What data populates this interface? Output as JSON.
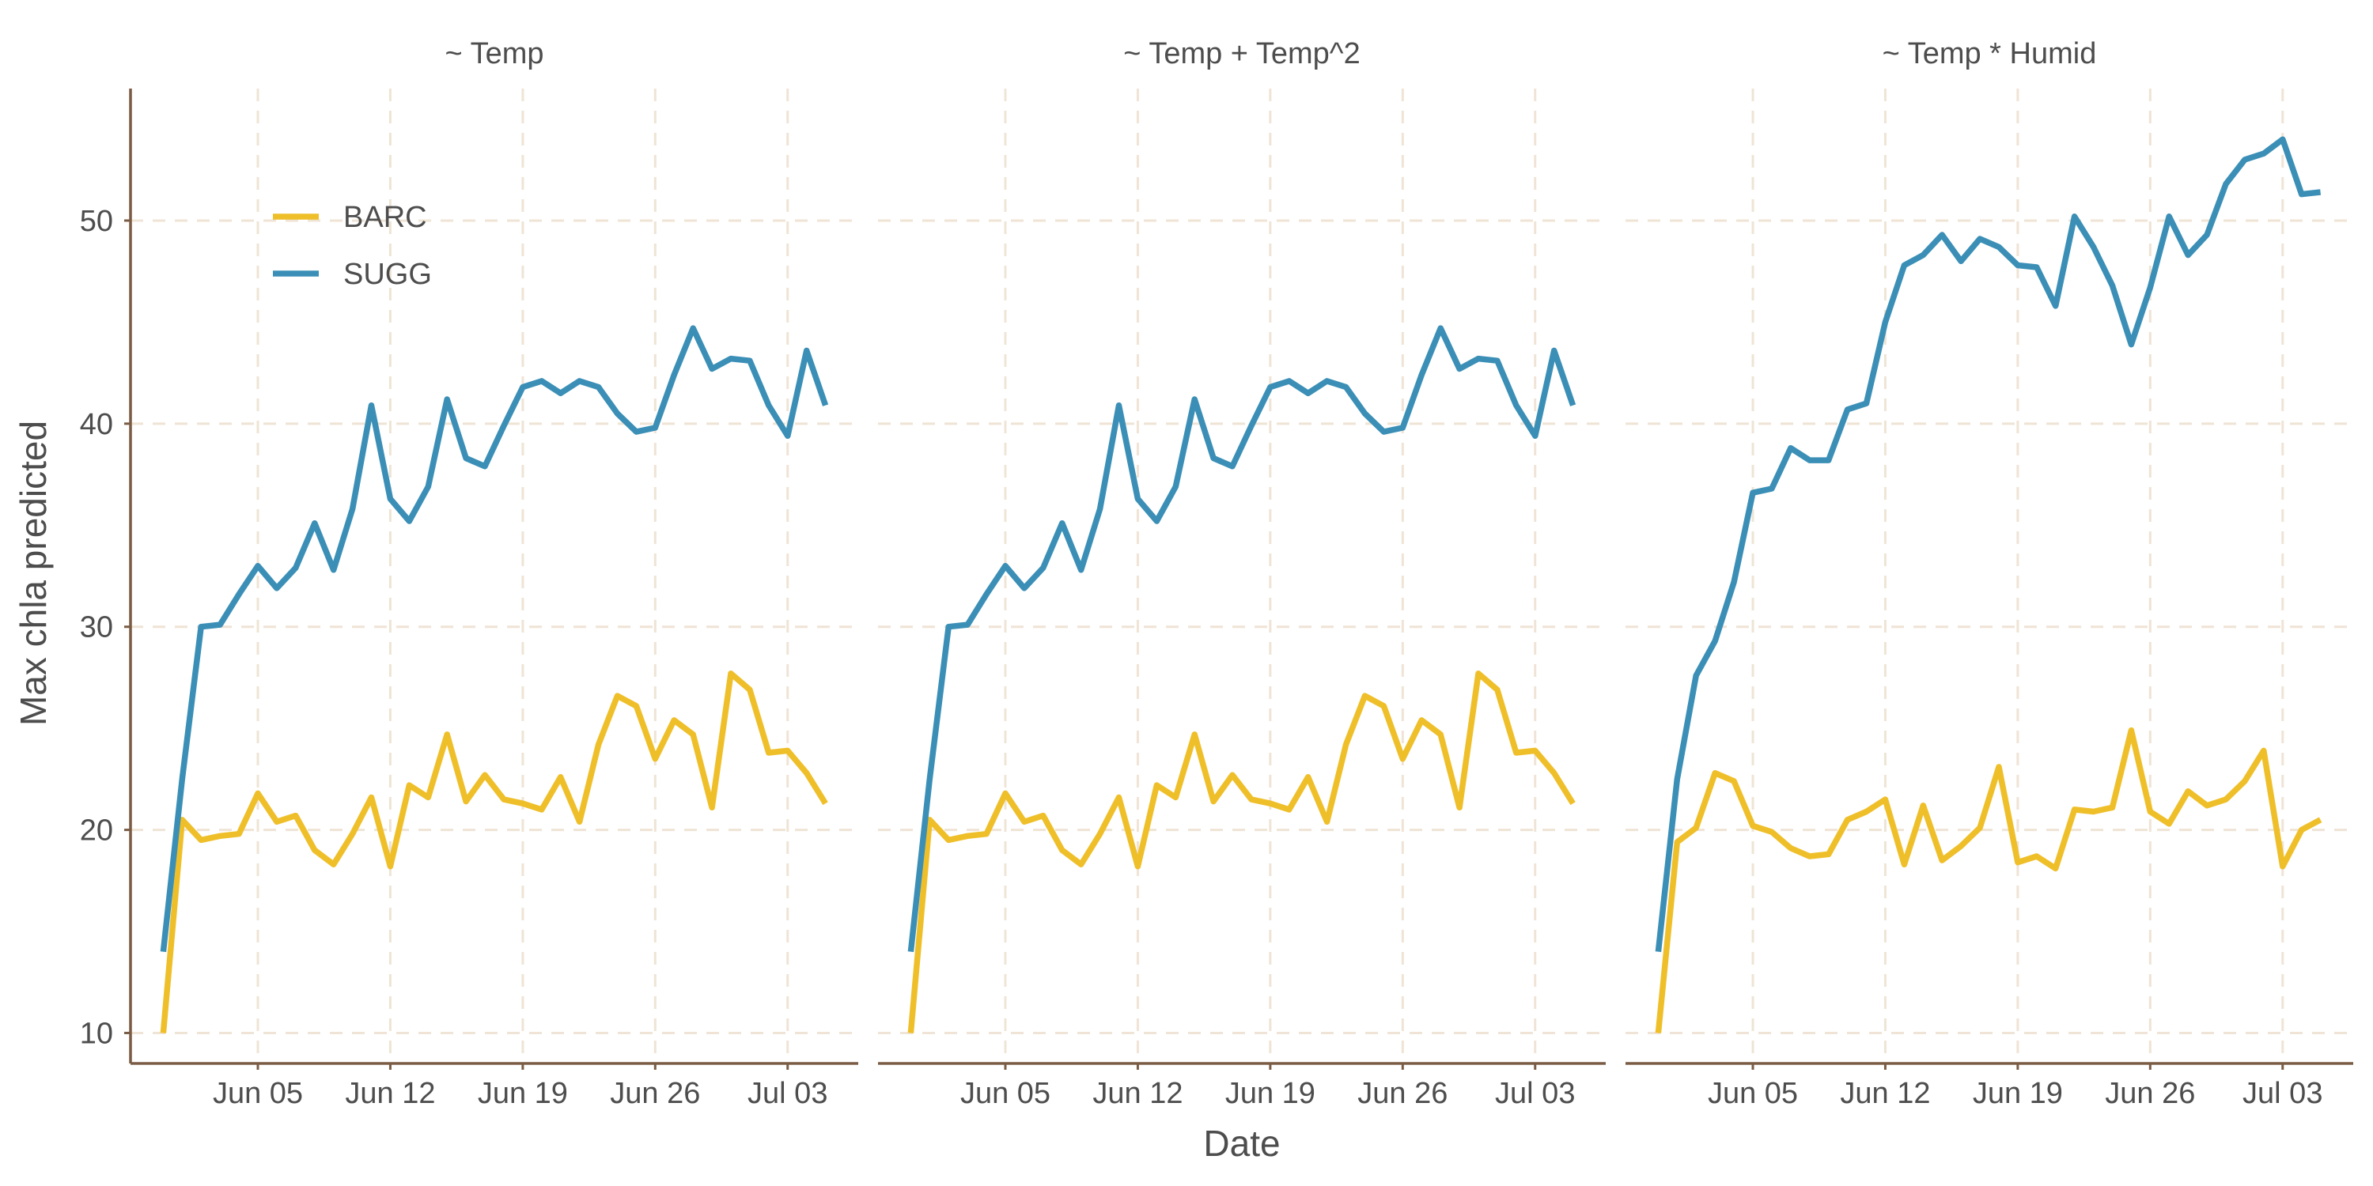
{
  "chart_data": {
    "type": "line",
    "xlabel": "Date",
    "ylabel": "Max chla predicted",
    "ylim": [
      8.5,
      56.5
    ],
    "y_ticks": [
      10,
      20,
      30,
      40,
      50
    ],
    "x_ticks": [
      "Jun 05",
      "Jun 12",
      "Jun 19",
      "Jun 26",
      "Jul 03"
    ],
    "x_dates": [
      "2020-05-31",
      "2020-06-01",
      "2020-06-02",
      "2020-06-03",
      "2020-06-04",
      "2020-06-05",
      "2020-06-06",
      "2020-06-07",
      "2020-06-08",
      "2020-06-09",
      "2020-06-10",
      "2020-06-11",
      "2020-06-12",
      "2020-06-13",
      "2020-06-14",
      "2020-06-15",
      "2020-06-16",
      "2020-06-17",
      "2020-06-18",
      "2020-06-19",
      "2020-06-20",
      "2020-06-21",
      "2020-06-22",
      "2020-06-23",
      "2020-06-24",
      "2020-06-25",
      "2020-06-26",
      "2020-06-27",
      "2020-06-28",
      "2020-06-29",
      "2020-06-30",
      "2020-07-01",
      "2020-07-02",
      "2020-07-03",
      "2020-07-04",
      "2020-07-05"
    ],
    "grid": true,
    "legend": {
      "placement": "top-left",
      "entries": [
        "BARC",
        "SUGG"
      ]
    },
    "colors": {
      "BARC": "#EFBF2A",
      "SUGG": "#3B8FB6"
    },
    "panels": [
      {
        "title": "~ Temp",
        "series": [
          {
            "name": "BARC",
            "values": [
              10.0,
              20.5,
              19.5,
              19.7,
              19.8,
              21.8,
              20.4,
              20.7,
              19.0,
              18.3,
              19.8,
              21.6,
              18.2,
              22.2,
              21.6,
              24.7,
              21.4,
              22.7,
              21.5,
              21.3,
              21.0,
              22.6,
              20.4,
              24.2,
              26.6,
              26.1,
              23.5,
              25.4,
              24.7,
              21.1,
              27.7,
              26.9,
              23.8,
              23.9,
              22.8,
              21.3
            ]
          },
          {
            "name": "SUGG",
            "values": [
              14.0,
              22.5,
              30.0,
              30.1,
              31.6,
              33.0,
              31.9,
              32.9,
              35.1,
              32.8,
              35.8,
              40.9,
              36.3,
              35.2,
              36.9,
              41.2,
              38.3,
              37.9,
              39.9,
              41.8,
              42.1,
              41.5,
              42.1,
              41.8,
              40.5,
              39.6,
              39.8,
              42.4,
              44.7,
              42.7,
              43.2,
              43.1,
              40.9,
              39.4,
              43.6,
              40.9
            ]
          }
        ]
      },
      {
        "title": "~ Temp + Temp^2",
        "series": [
          {
            "name": "BARC",
            "values": [
              10.0,
              20.5,
              19.5,
              19.7,
              19.8,
              21.8,
              20.4,
              20.7,
              19.0,
              18.3,
              19.8,
              21.6,
              18.2,
              22.2,
              21.6,
              24.7,
              21.4,
              22.7,
              21.5,
              21.3,
              21.0,
              22.6,
              20.4,
              24.2,
              26.6,
              26.1,
              23.5,
              25.4,
              24.7,
              21.1,
              27.7,
              26.9,
              23.8,
              23.9,
              22.8,
              21.3
            ]
          },
          {
            "name": "SUGG",
            "values": [
              14.0,
              22.5,
              30.0,
              30.1,
              31.6,
              33.0,
              31.9,
              32.9,
              35.1,
              32.8,
              35.8,
              40.9,
              36.3,
              35.2,
              36.9,
              41.2,
              38.3,
              37.9,
              39.9,
              41.8,
              42.1,
              41.5,
              42.1,
              41.8,
              40.5,
              39.6,
              39.8,
              42.4,
              44.7,
              42.7,
              43.2,
              43.1,
              40.9,
              39.4,
              43.6,
              40.9
            ]
          }
        ]
      },
      {
        "title": "~ Temp * Humid",
        "series": [
          {
            "name": "BARC",
            "values": [
              10.0,
              19.4,
              20.1,
              22.8,
              22.4,
              20.2,
              19.9,
              19.1,
              18.7,
              18.8,
              20.5,
              20.9,
              21.5,
              18.3,
              21.2,
              18.5,
              19.2,
              20.1,
              23.1,
              18.4,
              18.7,
              18.1,
              21.0,
              20.9,
              21.1,
              24.9,
              20.9,
              20.3,
              21.9,
              21.2,
              21.5,
              22.4,
              23.9,
              18.2,
              20.0,
              20.5
            ]
          },
          {
            "name": "SUGG",
            "values": [
              14.0,
              22.5,
              27.6,
              29.3,
              32.2,
              36.6,
              36.8,
              38.8,
              38.2,
              38.2,
              40.7,
              41.0,
              45.0,
              47.8,
              48.3,
              49.3,
              48.0,
              49.1,
              48.7,
              47.8,
              47.7,
              45.8,
              50.2,
              48.7,
              46.8,
              43.9,
              46.7,
              50.2,
              48.3,
              49.3,
              51.8,
              53.0,
              53.3,
              54.0,
              51.3,
              51.4
            ]
          }
        ]
      }
    ]
  }
}
